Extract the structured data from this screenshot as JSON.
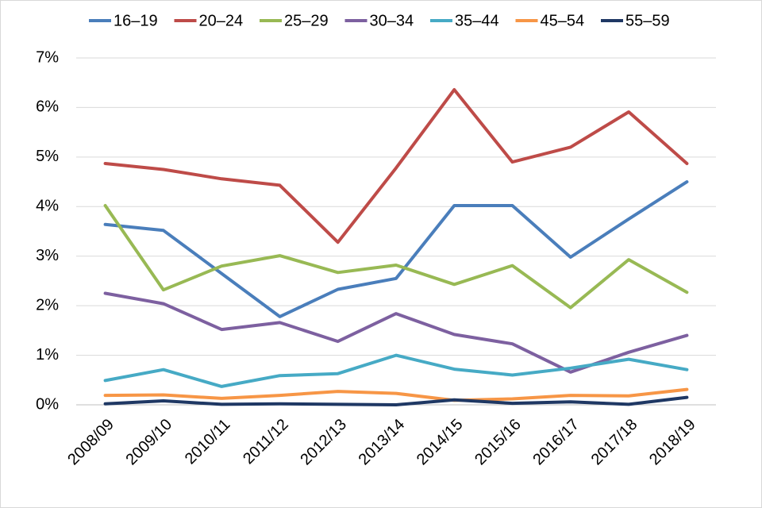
{
  "chart_data": {
    "type": "line",
    "categories": [
      "2008/09",
      "2009/10",
      "2010/11",
      "2011/12",
      "2012/13",
      "2013/14",
      "2014/15",
      "2015/16",
      "2016/17",
      "2017/18",
      "2018/19"
    ],
    "series": [
      {
        "name": "16–19",
        "color": "#4a7ebb",
        "values": [
          3.64,
          3.52,
          2.65,
          1.78,
          2.33,
          2.55,
          4.02,
          4.02,
          2.98,
          3.75,
          4.5
        ]
      },
      {
        "name": "20–24",
        "color": "#be4b48",
        "values": [
          4.87,
          4.75,
          4.56,
          4.43,
          3.28,
          4.78,
          6.36,
          4.9,
          5.2,
          5.91,
          4.87
        ]
      },
      {
        "name": "25–29",
        "color": "#98b954",
        "values": [
          4.02,
          2.32,
          2.8,
          3.01,
          2.67,
          2.82,
          2.43,
          2.81,
          1.96,
          2.93,
          2.27
        ]
      },
      {
        "name": "30–34",
        "color": "#7d60a0",
        "values": [
          2.25,
          2.04,
          1.52,
          1.66,
          1.28,
          1.84,
          1.42,
          1.23,
          0.66,
          1.06,
          1.4
        ]
      },
      {
        "name": "35–44",
        "color": "#46aac5",
        "values": [
          0.49,
          0.71,
          0.37,
          0.59,
          0.63,
          1.0,
          0.72,
          0.6,
          0.74,
          0.92,
          0.71
        ]
      },
      {
        "name": "45–54",
        "color": "#f79646",
        "values": [
          0.19,
          0.2,
          0.13,
          0.19,
          0.27,
          0.23,
          0.09,
          0.12,
          0.19,
          0.18,
          0.31
        ]
      },
      {
        "name": "55–59",
        "color": "#1f3864",
        "values": [
          0.02,
          0.08,
          0.01,
          0.02,
          0.01,
          0.0,
          0.1,
          0.03,
          0.06,
          0.01,
          0.15
        ]
      }
    ],
    "ylim": [
      0,
      7
    ],
    "yticks": [
      {
        "value": 0,
        "label": "0%"
      },
      {
        "value": 1,
        "label": "1%"
      },
      {
        "value": 2,
        "label": "2%"
      },
      {
        "value": 3,
        "label": "3%"
      },
      {
        "value": 4,
        "label": "4%"
      },
      {
        "value": 5,
        "label": "5%"
      },
      {
        "value": 6,
        "label": "6%"
      },
      {
        "value": 7,
        "label": "7%"
      }
    ],
    "grid": true,
    "legend": "top"
  }
}
